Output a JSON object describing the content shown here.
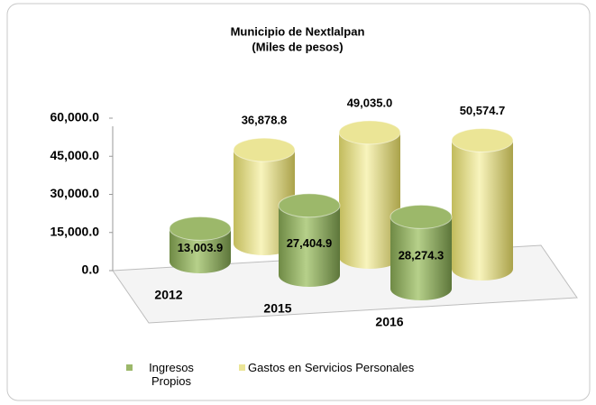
{
  "chart_data": {
    "type": "cylinder3d",
    "title": "Municipio de Nextlalpan",
    "subtitle": "(Miles de pesos)",
    "categories": [
      "2012",
      "2015",
      "2016"
    ],
    "series": [
      {
        "name": "Ingresos Propios",
        "color": "#9cb86a",
        "values": [
          13003.9,
          27404.9,
          28274.3
        ],
        "value_labels": [
          "13,003.9",
          "27,404.9",
          "28,274.3"
        ]
      },
      {
        "name": "Gastos en Servicios Personales",
        "color": "#ebe596",
        "values": [
          36878.8,
          49035.0,
          50574.7
        ],
        "value_labels": [
          "36,878.8",
          "49,035.0",
          "50,574.7"
        ]
      }
    ],
    "ylim": [
      0,
      60000
    ],
    "yticks": [
      {
        "value": 0,
        "label": "0.0"
      },
      {
        "value": 15000,
        "label": "15,000.0"
      },
      {
        "value": 30000,
        "label": "30,000.0"
      },
      {
        "value": 45000,
        "label": "45,000.0"
      },
      {
        "value": 60000,
        "label": "60,000.0"
      }
    ]
  }
}
